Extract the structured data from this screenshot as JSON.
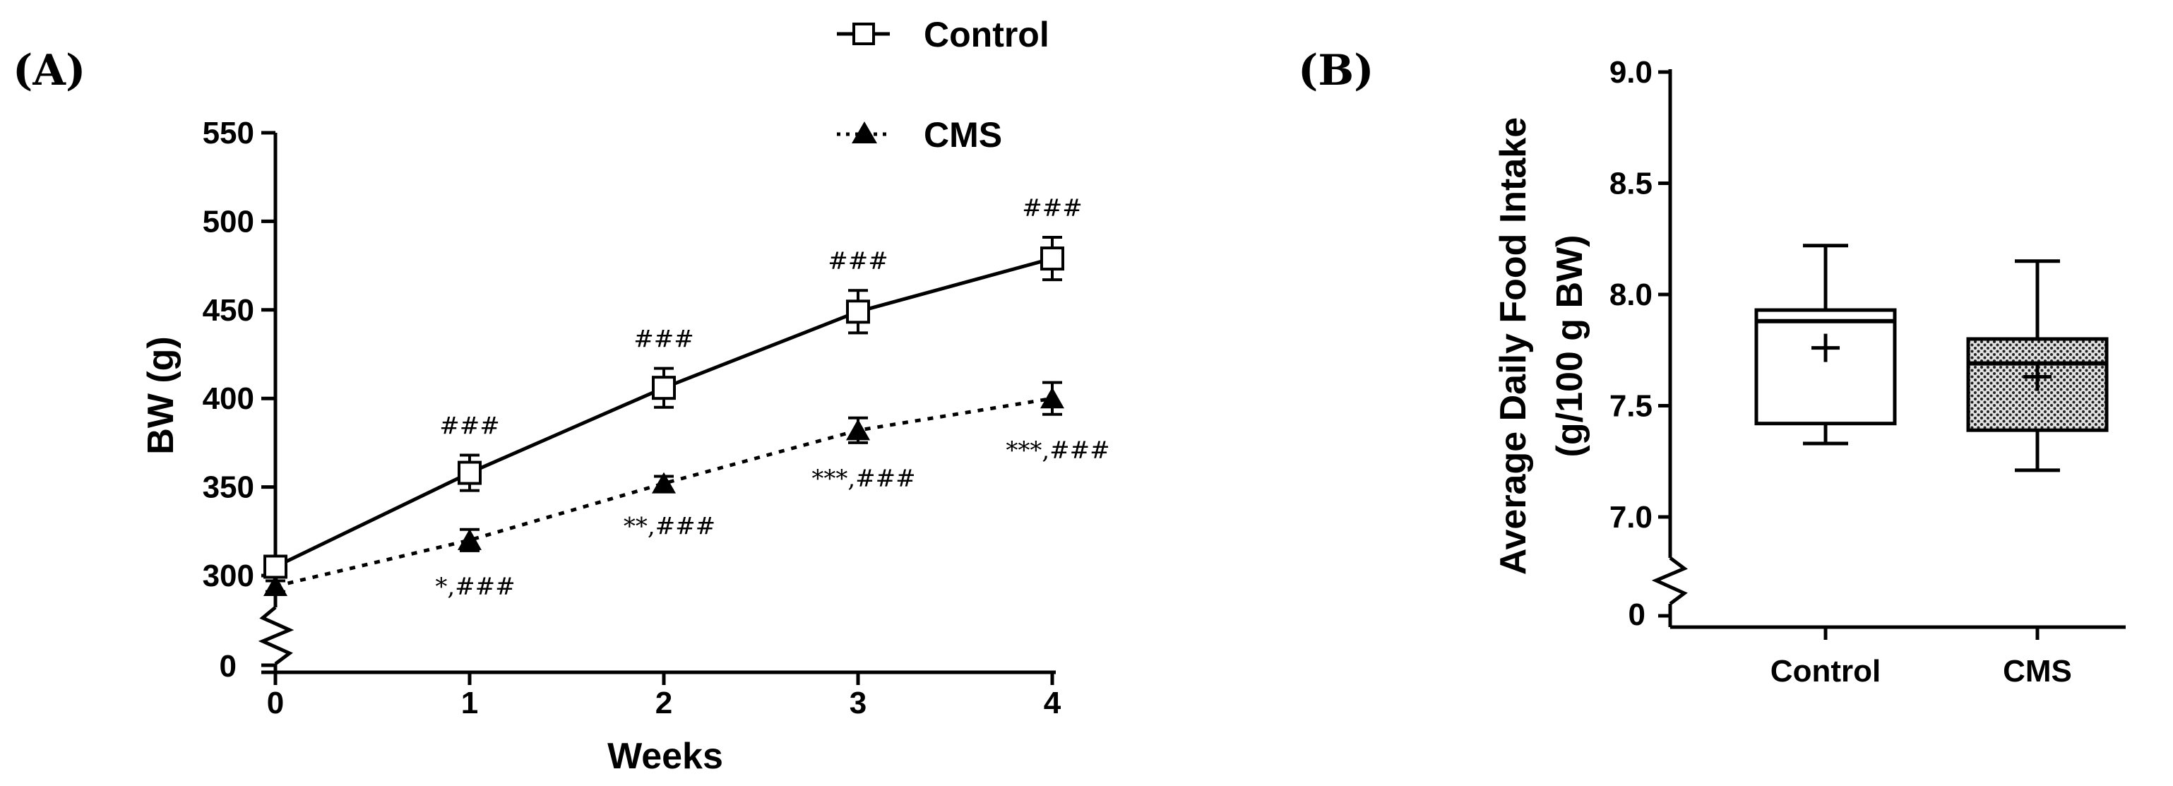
{
  "chart_data": [
    {
      "panel_label": "(A)",
      "type": "line",
      "xlabel": "Weeks",
      "ylabel": "BW (g)",
      "x": [
        0,
        1,
        2,
        3,
        4
      ],
      "x_ticks": [
        "0",
        "1",
        "2",
        "3",
        "4"
      ],
      "y_ticks": [
        "300",
        "350",
        "400",
        "450",
        "500",
        "550"
      ],
      "y_break_label": "0",
      "ylim": [
        300,
        550
      ],
      "series": [
        {
          "name": "Control",
          "line": "solid",
          "marker": "open-square",
          "values": [
            305,
            358,
            406,
            449,
            479
          ],
          "errors": [
            4,
            10,
            11,
            12,
            12
          ],
          "annotations": [
            "",
            "###",
            "###",
            "###",
            "###"
          ]
        },
        {
          "name": "CMS",
          "line": "dotted",
          "marker": "filled-triangle",
          "values": [
            294,
            320,
            352,
            382,
            400
          ],
          "errors": [
            3,
            6,
            4,
            7,
            9
          ],
          "annotations": [
            "",
            "*,###",
            "**,###",
            "***,###",
            "***,###"
          ]
        }
      ],
      "legend": [
        "Control",
        "CMS"
      ]
    },
    {
      "panel_label": "(B)",
      "type": "box",
      "ylabel_line1": "Average Daily Food Intake",
      "ylabel_line2": "(g/100 g BW)",
      "categories": [
        "Control",
        "CMS"
      ],
      "y_ticks": [
        "7.0",
        "7.5",
        "8.0",
        "8.5",
        "9.0"
      ],
      "y_break_label": "0",
      "ylim": [
        7.0,
        9.0
      ],
      "boxes": [
        {
          "name": "Control",
          "min": 7.33,
          "q1": 7.42,
          "median": 7.88,
          "q3": 7.93,
          "max": 8.22,
          "mean": 7.76,
          "fill": "none"
        },
        {
          "name": "CMS",
          "min": 7.21,
          "q1": 7.39,
          "median": 7.69,
          "q3": 7.8,
          "max": 8.15,
          "mean": 7.63,
          "fill": "dotted"
        }
      ]
    }
  ]
}
